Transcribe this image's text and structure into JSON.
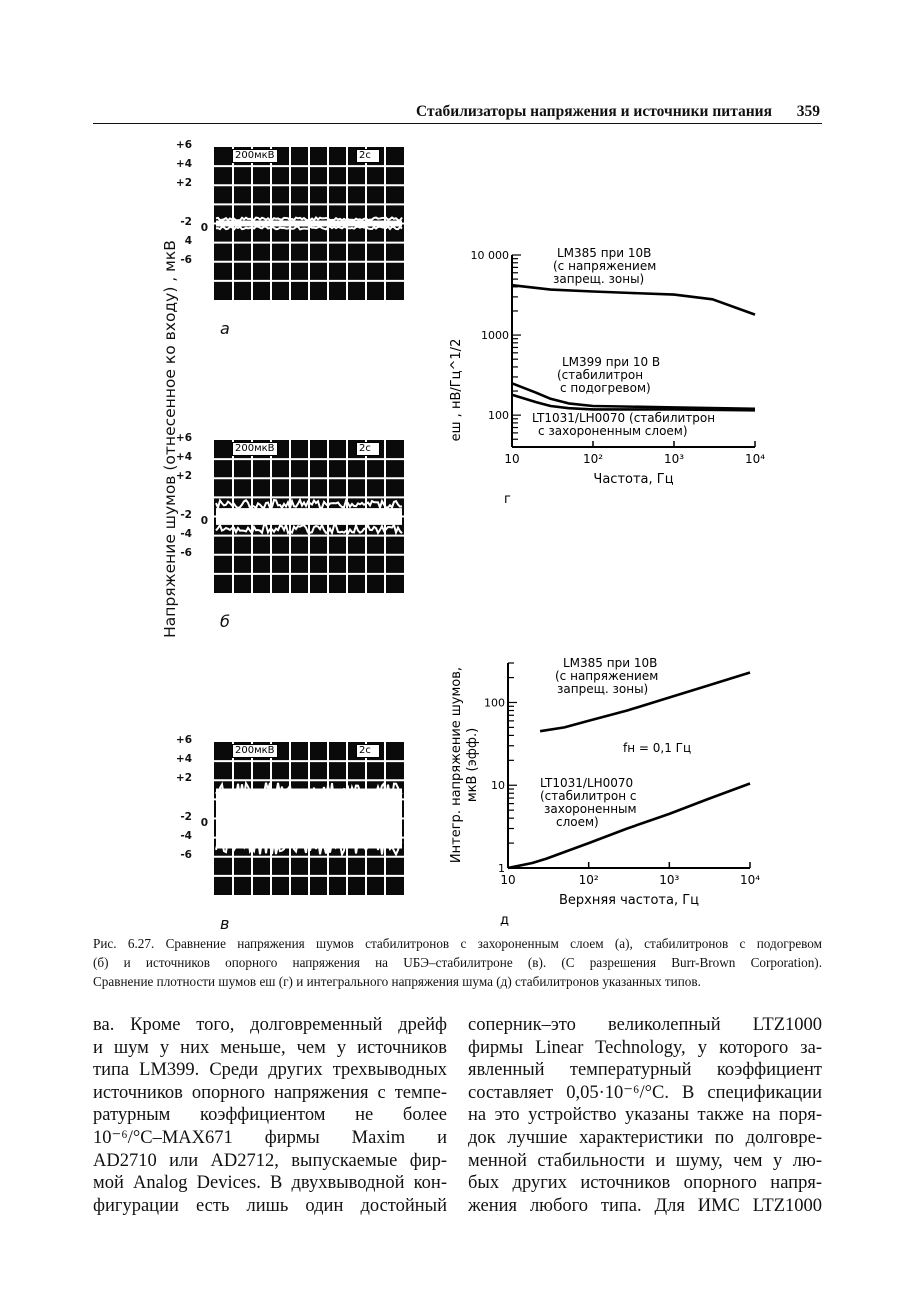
{
  "header": {
    "title": "Стабилизаторы напряжения и источники питания",
    "page_number": "359"
  },
  "figure": {
    "y_axis_label": "Напряжение шумов (отнесенное ко входу) , мкВ",
    "scopes": [
      {
        "letter": "а",
        "scale_label": "200мкВ",
        "time_label": "2с",
        "y_labels": [
          "+6",
          "+4",
          "+2",
          "0",
          "-2",
          "4",
          "-6"
        ],
        "noise_level": "low"
      },
      {
        "letter": "б",
        "scale_label": "200мкВ",
        "time_label": "2с",
        "y_labels": [
          "+6",
          "+4",
          "+2",
          "0",
          "-2",
          "-4",
          "-6"
        ],
        "noise_level": "medium"
      },
      {
        "letter": "в",
        "scale_label": "200мкВ",
        "time_label": "2с",
        "y_labels": [
          "+6",
          "+4",
          "+2",
          "0",
          "-2",
          "-4",
          "-6"
        ],
        "noise_level": "high"
      }
    ]
  },
  "chart_data": [
    {
      "type": "line",
      "panel_letter": "г",
      "xlabel": "Частота, Гц",
      "ylabel": "eш , нВ/Гц^1/2",
      "x_scale": "log",
      "y_scale": "log",
      "xlim": [
        10,
        10000
      ],
      "ylim": [
        40,
        10000
      ],
      "x_ticks": [
        "10",
        "10²",
        "10³",
        "10⁴"
      ],
      "y_ticks": [
        "10 000",
        "1000",
        "100"
      ],
      "series": [
        {
          "name": "LM385 при 10В (с напряжением запрещ. зоны)",
          "label_lines": [
            "LM385 при 10В",
            "(с напряжением",
            "запрещ. зоны)"
          ],
          "x": [
            10,
            30,
            100,
            300,
            1000,
            3000,
            10000
          ],
          "y": [
            4200,
            3700,
            3500,
            3350,
            3200,
            2800,
            1800
          ]
        },
        {
          "name": "LM399 при 10 В (стабилитрон с подогревом)",
          "label_lines": [
            "LM399 при 10 В",
            "(стабилитрон",
            "с подогревом)"
          ],
          "x": [
            10,
            20,
            30,
            50,
            100,
            1000,
            10000
          ],
          "y": [
            250,
            190,
            160,
            140,
            130,
            125,
            120
          ]
        },
        {
          "name": "LT1031/LH0070 (стабилитрон с захороненным слоем)",
          "label_lines": [
            "LT1031/LH0070 (стабилитрон",
            "с захороненным слоем)"
          ],
          "x": [
            10,
            20,
            30,
            50,
            100,
            1000,
            10000
          ],
          "y": [
            180,
            145,
            130,
            122,
            118,
            118,
            115
          ]
        }
      ]
    },
    {
      "type": "line",
      "panel_letter": "д",
      "xlabel": "Верхняя частота, Гц",
      "ylabel": "Интегр. напряжение шумов, мкВ (эфф.)",
      "ylabel_lines": [
        "Интегр. напряжение шумов,",
        "мкВ (эфф.)"
      ],
      "x_scale": "log",
      "y_scale": "log",
      "xlim": [
        10,
        10000
      ],
      "ylim": [
        1,
        300
      ],
      "x_ticks": [
        "10",
        "10²",
        "10³",
        "10⁴"
      ],
      "y_ticks": [
        "100",
        "10",
        "1"
      ],
      "annotation": "fн = 0,1 Гц",
      "series": [
        {
          "name": "LM385 при 10В (с напряжением запрещ. зоны)",
          "label_lines": [
            "LM385 при 10В",
            "(с напряжением",
            "запрещ. зоны)"
          ],
          "x": [
            25,
            50,
            100,
            300,
            1000,
            3000,
            10000
          ],
          "y": [
            45,
            50,
            60,
            80,
            115,
            160,
            230
          ]
        },
        {
          "name": "LT1031/LH0070 (стабилитрон с захороненным слоем)",
          "label_lines": [
            "LT1031/LH0070",
            "(стабилитрон с",
            "захороненным",
            "слоем)"
          ],
          "x": [
            10,
            20,
            30,
            100,
            300,
            1000,
            3000,
            10000
          ],
          "y": [
            1,
            1.15,
            1.3,
            2,
            3,
            4.5,
            6.8,
            10.5
          ]
        }
      ]
    }
  ],
  "caption": [
    "Рис. 6.27. Сравнение напряжения шумов стабилитронов с захороненным слоем (а), стабилитронов с подогревом",
    "(б) и источников опорного напряжения на UБЭ–стабилитроне (в). (С разрешения Burr-Brown Corporation).",
    "Сравнение плотности шумов eш (г) и интегрального напряжения шума (д) стабилитронов указанных типов."
  ],
  "body": {
    "left_column": [
      "ва. Кроме того, долговременный дрейф",
      "и шум у них меньше, чем у источников",
      "типа LM399. Среди других трехвыводных",
      "источников опорного напряжения с темпе-",
      "ратурным коэффициентом не более",
      "10⁻⁶/°C–MAX671 фирмы Maxim и",
      "AD2710 или AD2712, выпускаемые фир-",
      "мой Analog Devices. В двухвыводной кон-",
      "фигурации есть лишь один достойный"
    ],
    "right_column": [
      "соперник–это великолепный LTZ1000",
      "фирмы Linear Technology, у которого за-",
      "явленный температурный коэффициент",
      "составляет 0,05·10⁻⁶/°C. В спецификации",
      "на это устройство указаны также на поря-",
      "док лучшие характеристики по долговре-",
      "менной стабильности и шуму, чем у лю-",
      "бых других источников опорного напря-",
      "жения любого типа. Для ИМС LTZ1000"
    ]
  }
}
